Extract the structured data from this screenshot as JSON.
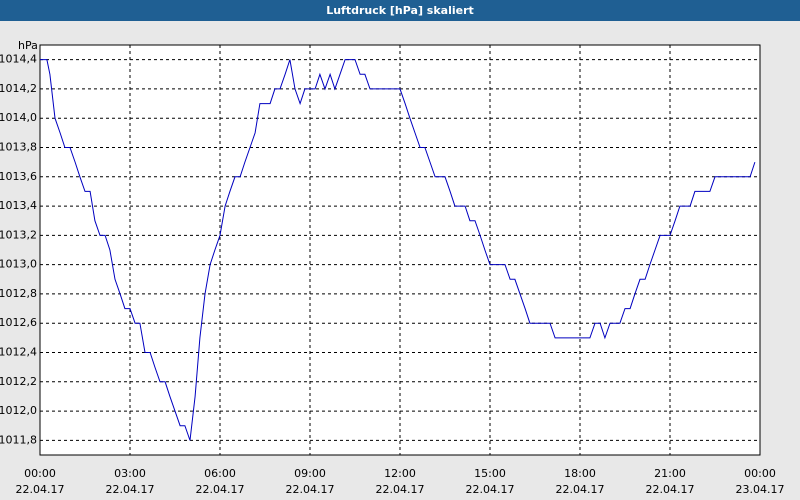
{
  "chart_data": {
    "type": "line",
    "title": "Luftdruck [hPa] skaliert",
    "y_unit": "hPa",
    "x": [
      0,
      0.23,
      0.33,
      0.5,
      0.67,
      0.83,
      1,
      1.17,
      1.33,
      1.5,
      1.67,
      1.83,
      2,
      2.17,
      2.33,
      2.5,
      2.67,
      2.83,
      3,
      3.17,
      3.33,
      3.5,
      3.67,
      3.83,
      4,
      4.17,
      4.33,
      4.5,
      4.67,
      4.83,
      5,
      5.17,
      5.33,
      5.5,
      5.67,
      5.83,
      6,
      6.17,
      6.33,
      6.5,
      6.67,
      6.83,
      7,
      7.17,
      7.33,
      7.67,
      7.83,
      8,
      8.17,
      8.33,
      8.5,
      8.67,
      8.83,
      9.17,
      9.33,
      9.5,
      9.67,
      9.83,
      10,
      10.17,
      10.5,
      10.67,
      10.83,
      11,
      12,
      12.17,
      12.33,
      12.5,
      12.67,
      12.83,
      13,
      13.17,
      13.5,
      13.67,
      13.83,
      14.17,
      14.33,
      14.5,
      14.67,
      14.83,
      15,
      15.5,
      15.67,
      15.83,
      16,
      16.17,
      16.33,
      17,
      17.17,
      18.33,
      18.5,
      18.67,
      18.83,
      19,
      19.33,
      19.5,
      19.67,
      19.83,
      20,
      20.17,
      20.33,
      20.5,
      20.67,
      21,
      21.17,
      21.33,
      21.67,
      21.83,
      22.33,
      22.5,
      23.67,
      23.83
    ],
    "series": [
      {
        "color": "#0000c0",
        "values": [
          1014.4,
          1014.4,
          1014.3,
          1014.0,
          1013.9,
          1013.8,
          1013.8,
          1013.7,
          1013.6,
          1013.5,
          1013.5,
          1013.3,
          1013.2,
          1013.2,
          1013.1,
          1012.9,
          1012.8,
          1012.7,
          1012.7,
          1012.6,
          1012.6,
          1012.4,
          1012.4,
          1012.3,
          1012.2,
          1012.2,
          1012.1,
          1012.0,
          1011.9,
          1011.9,
          1011.8,
          1012.1,
          1012.5,
          1012.8,
          1013.0,
          1013.1,
          1013.2,
          1013.4,
          1013.5,
          1013.6,
          1013.6,
          1013.7,
          1013.8,
          1013.9,
          1014.1,
          1014.1,
          1014.2,
          1014.2,
          1014.3,
          1014.4,
          1014.2,
          1014.1,
          1014.2,
          1014.2,
          1014.3,
          1014.2,
          1014.3,
          1014.2,
          1014.3,
          1014.4,
          1014.4,
          1014.3,
          1014.3,
          1014.2,
          1014.2,
          1014.1,
          1014.0,
          1013.9,
          1013.8,
          1013.8,
          1013.7,
          1013.6,
          1013.6,
          1013.5,
          1013.4,
          1013.4,
          1013.3,
          1013.3,
          1013.2,
          1013.1,
          1013.0,
          1013.0,
          1012.9,
          1012.9,
          1012.8,
          1012.7,
          1012.6,
          1012.6,
          1012.5,
          1012.5,
          1012.6,
          1012.6,
          1012.5,
          1012.6,
          1012.6,
          1012.7,
          1012.7,
          1012.8,
          1012.9,
          1012.9,
          1013.0,
          1013.1,
          1013.2,
          1013.2,
          1013.3,
          1013.4,
          1013.4,
          1013.5,
          1013.5,
          1013.6,
          1013.6,
          1013.7
        ]
      }
    ],
    "xlim": [
      0,
      24
    ],
    "xticks": [
      {
        "value": 0,
        "label": "00:00"
      },
      {
        "value": 3,
        "label": "03:00"
      },
      {
        "value": 6,
        "label": "06:00"
      },
      {
        "value": 9,
        "label": "09:00"
      },
      {
        "value": 12,
        "label": "12:00"
      },
      {
        "value": 15,
        "label": "15:00"
      },
      {
        "value": 18,
        "label": "18:00"
      },
      {
        "value": 21,
        "label": "21:00"
      },
      {
        "value": 24,
        "label": "00:00"
      }
    ],
    "xtick_dates": [
      "22.04.17",
      "22.04.17",
      "22.04.17",
      "22.04.17",
      "22.04.17",
      "22.04.17",
      "22.04.17",
      "22.04.17",
      "23.04.17"
    ],
    "ylim": [
      1011.7,
      1014.5
    ],
    "yticks": [
      {
        "value": 1011.8,
        "label": "1011,8"
      },
      {
        "value": 1012.0,
        "label": "1012,0"
      },
      {
        "value": 1012.2,
        "label": "1012,2"
      },
      {
        "value": 1012.4,
        "label": "1012,4"
      },
      {
        "value": 1012.6,
        "label": "1012,6"
      },
      {
        "value": 1012.8,
        "label": "1012,8"
      },
      {
        "value": 1013.0,
        "label": "1013,0"
      },
      {
        "value": 1013.2,
        "label": "1013,2"
      },
      {
        "value": 1013.4,
        "label": "1013,4"
      },
      {
        "value": 1013.6,
        "label": "1013,6"
      },
      {
        "value": 1013.8,
        "label": "1013,8"
      },
      {
        "value": 1014.0,
        "label": "1014,0"
      },
      {
        "value": 1014.2,
        "label": "1014,2"
      },
      {
        "value": 1014.4,
        "label": "1014,4"
      }
    ],
    "grid": true
  }
}
